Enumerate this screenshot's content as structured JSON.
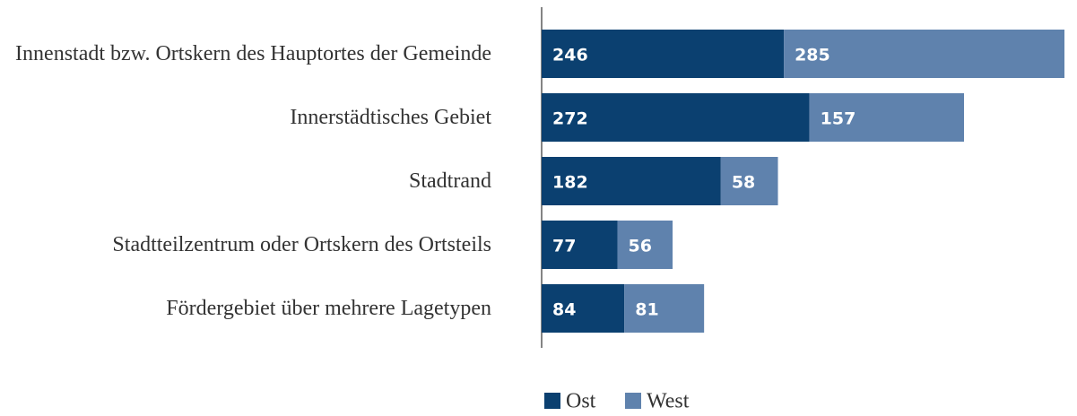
{
  "chart_data": {
    "type": "stacked-barh",
    "categories": [
      "Innenstadt bzw. Ortskern des Hauptortes der Gemeinde",
      "Innerstädtisches Gebiet",
      "Stadtrand",
      "Stadtteilzentrum oder Ortskern des Ortsteils",
      "Fördergebiet über mehrere Lagetypen"
    ],
    "series": [
      {
        "name": "Ost",
        "color": "#0b4070",
        "values": [
          246,
          272,
          182,
          77,
          84
        ]
      },
      {
        "name": "West",
        "color": "#5f82ad",
        "values": [
          285,
          157,
          58,
          56,
          81
        ]
      }
    ],
    "legend": "bottom"
  }
}
